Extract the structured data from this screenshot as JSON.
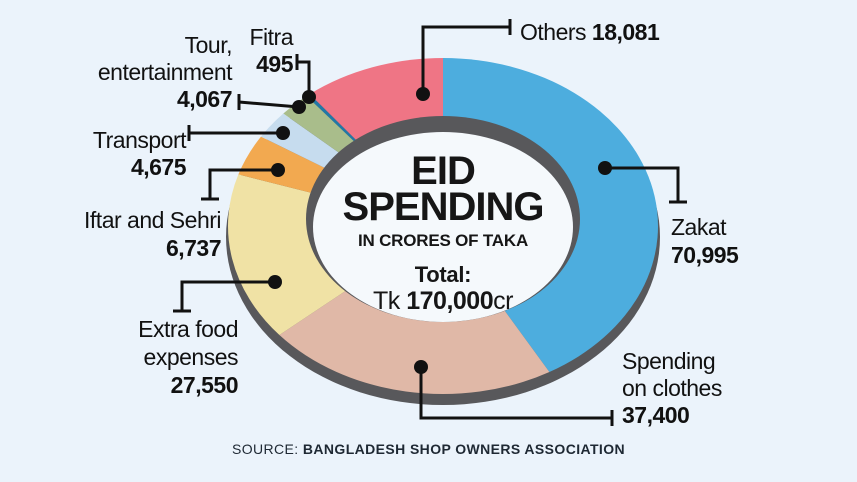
{
  "background_color": "#ebf3fb",
  "chart_data": {
    "type": "pie",
    "variant": "donut",
    "title": "EID SPENDING",
    "title_lines": [
      "EID",
      "SPENDING"
    ],
    "subtitle": "IN CRORES OF TAKA",
    "total_label": "Total:",
    "total_prefix": "Tk ",
    "total_value": "170,000",
    "total_suffix": "cr",
    "total": 170000,
    "start_angle_deg": 0,
    "clockwise": true,
    "legend_position": "around",
    "source_label": "SOURCE: ",
    "source_value": "BANGLADESH SHOP OWNERS ASSOCIATION",
    "colors": {
      "shadow": "#58585b",
      "hole": "#f5f9fc",
      "leader_line": "#111111",
      "text": "#111111"
    },
    "slices": [
      {
        "id": "zakat",
        "label": "Zakat",
        "label_lines": [
          "Zakat"
        ],
        "value": 70995,
        "display_value": "70,995",
        "color": "#4dadde"
      },
      {
        "id": "clothes",
        "label": "Spending on clothes",
        "label_lines": [
          "Spending",
          "on clothes"
        ],
        "value": 37400,
        "display_value": "37,400",
        "color": "#e0b8a7"
      },
      {
        "id": "extra-food",
        "label": "Extra food expenses",
        "label_lines": [
          "Extra food",
          "expenses"
        ],
        "value": 27550,
        "display_value": "27,550",
        "color": "#f0e2a5"
      },
      {
        "id": "iftar",
        "label": "Iftar and Sehri",
        "label_lines": [
          "Iftar and Sehri"
        ],
        "value": 6737,
        "display_value": "6,737",
        "color": "#f2a950"
      },
      {
        "id": "transport",
        "label": "Transport",
        "label_lines": [
          "Transport"
        ],
        "value": 4675,
        "display_value": "4,675",
        "color": "#c6dcee"
      },
      {
        "id": "tour",
        "label": "Tour, entertainment",
        "label_lines": [
          "Tour,",
          "entertainment"
        ],
        "value": 4067,
        "display_value": "4,067",
        "color": "#a9bd8b"
      },
      {
        "id": "fitra",
        "label": "Fitra",
        "label_lines": [
          "Fitra"
        ],
        "value": 495,
        "display_value": "495",
        "color": "#2278a6"
      },
      {
        "id": "others",
        "label": "Others",
        "label_lines": [
          "Others"
        ],
        "value": 18081,
        "display_value": "18,081",
        "color": "#ef7585",
        "inline_value": true
      }
    ]
  }
}
